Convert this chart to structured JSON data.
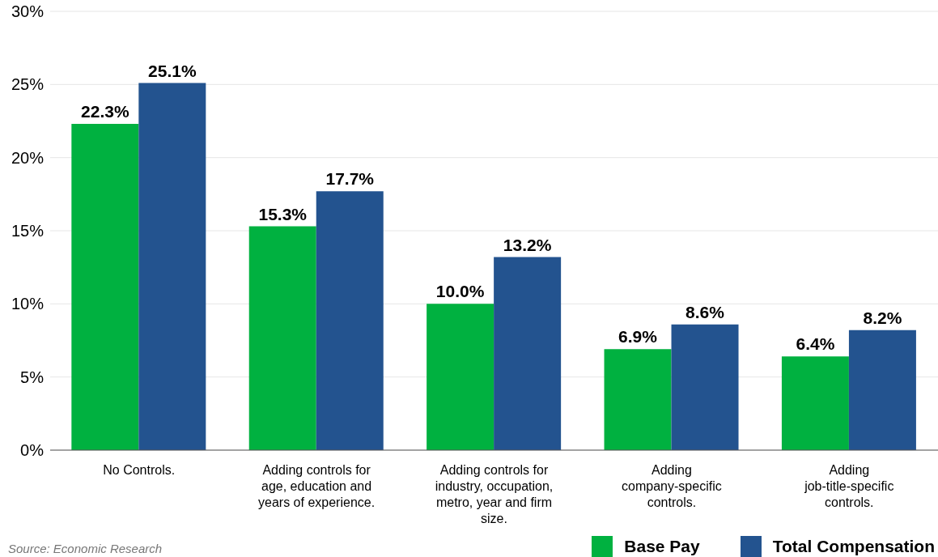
{
  "chart_data": {
    "type": "bar",
    "categories": [
      "No Controls.",
      "Adding controls for age, education and years of experience.",
      "Adding controls for industry, occupation, metro, year and firm size.",
      "Adding company-specific controls.",
      "Adding job-title-specific controls."
    ],
    "series": [
      {
        "name": "Base Pay",
        "color": "#00b140",
        "values": [
          22.3,
          15.3,
          10.0,
          6.9,
          6.4
        ],
        "value_labels": [
          "22.3%",
          "15.3%",
          "10.0%",
          "6.9%",
          "6.4%"
        ]
      },
      {
        "name": "Total Compensation",
        "color": "#23538f",
        "values": [
          25.1,
          17.7,
          13.2,
          8.6,
          8.2
        ],
        "value_labels": [
          "25.1%",
          "17.7%",
          "13.2%",
          "8.6%",
          "8.2%"
        ]
      }
    ],
    "ylim": [
      0,
      30
    ],
    "yticks": [
      {
        "value": 0,
        "label": "0%"
      },
      {
        "value": 5,
        "label": "5%"
      },
      {
        "value": 10,
        "label": "10%"
      },
      {
        "value": 15,
        "label": "15%"
      },
      {
        "value": 20,
        "label": "20%"
      },
      {
        "value": 25,
        "label": "25%"
      },
      {
        "value": 30,
        "label": "30%"
      }
    ],
    "grid": "y",
    "legend": "bottom right",
    "annotations": [
      "Source: Economic Research"
    ]
  }
}
